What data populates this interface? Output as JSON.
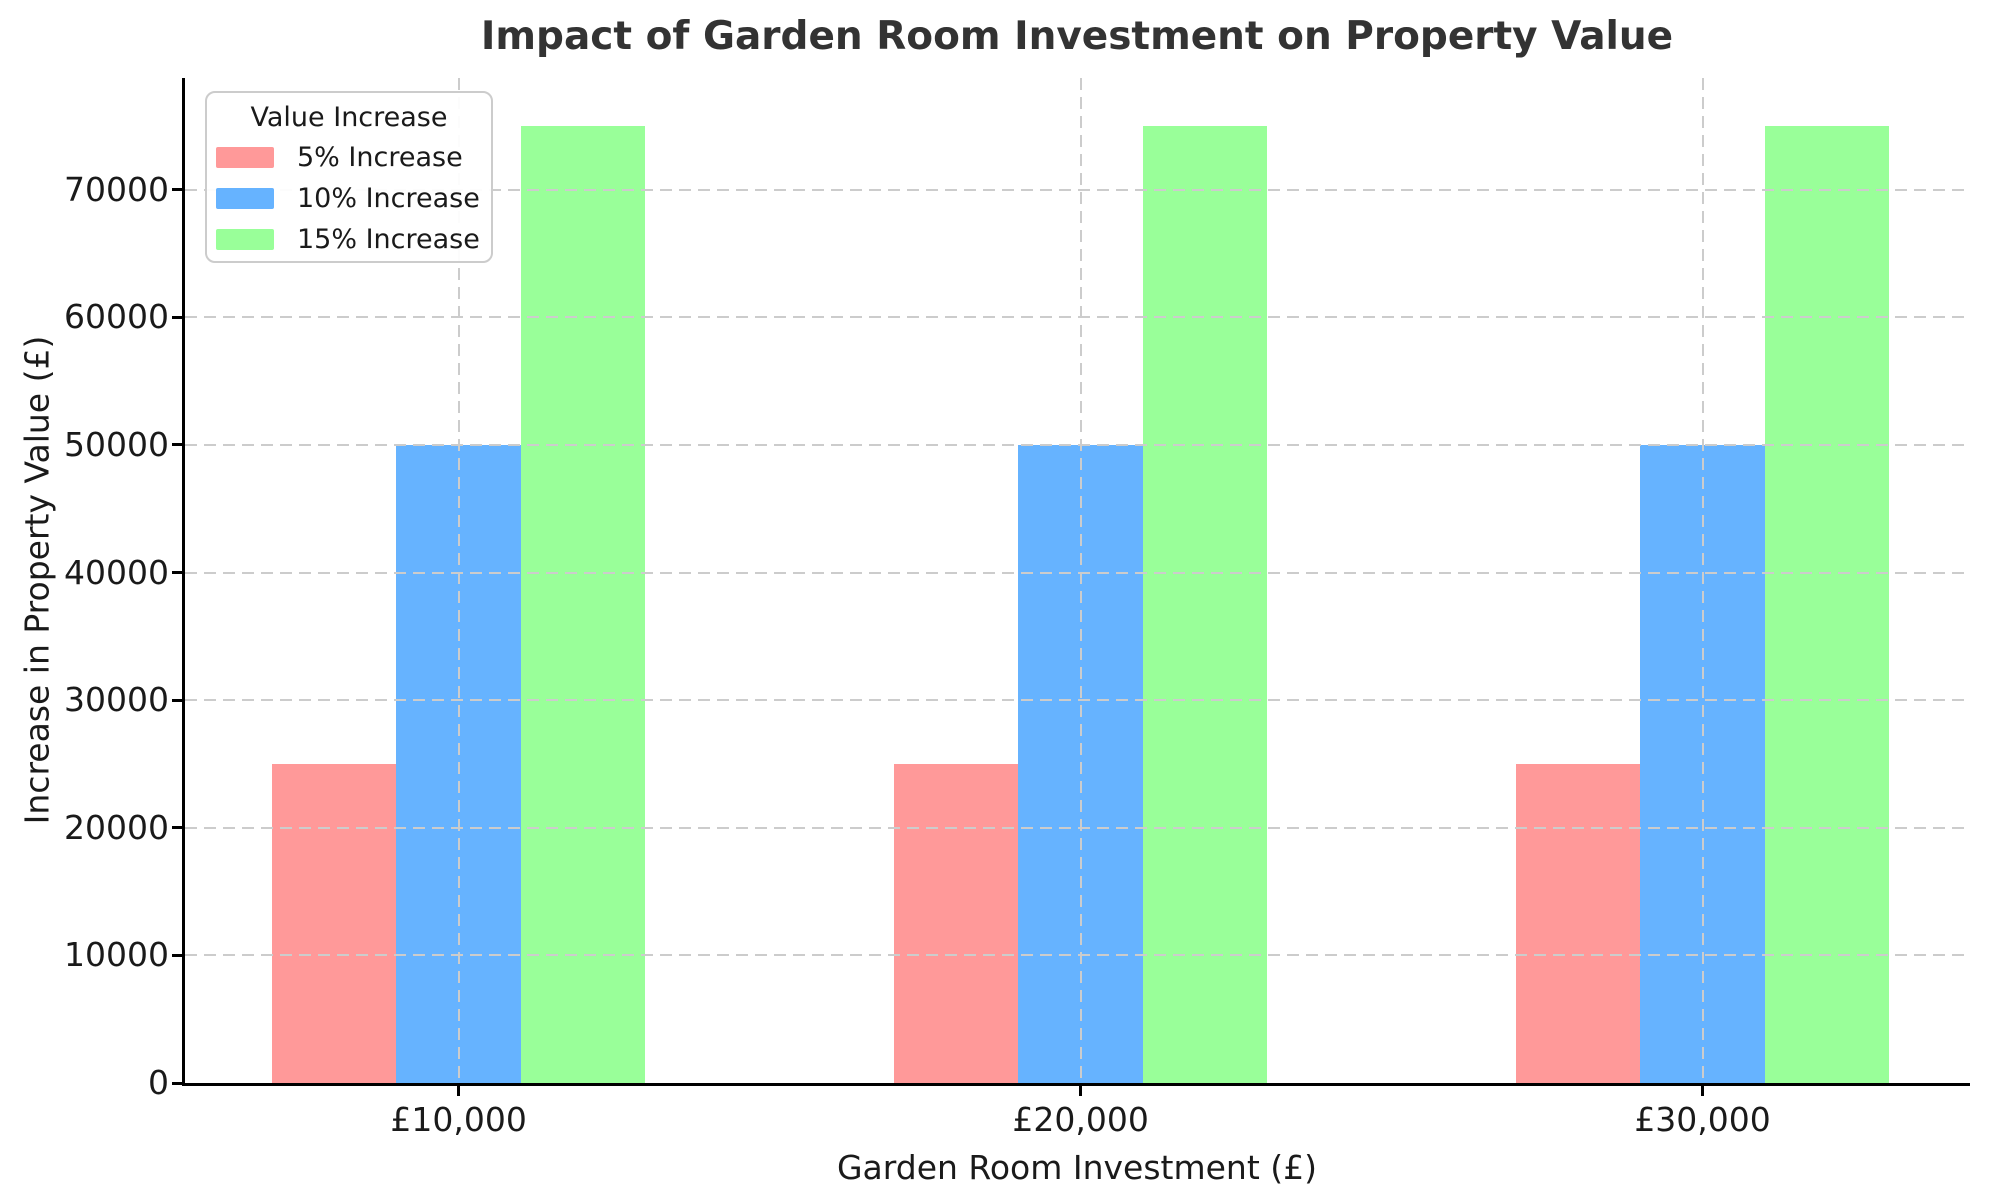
{
  "chart_data": {
    "type": "bar",
    "title": "Impact of Garden Room Investment on Property Value",
    "xlabel": "Garden Room Investment (£)",
    "ylabel": "Increase in Property Value (£)",
    "categories": [
      "£10,000",
      "£20,000",
      "£30,000"
    ],
    "series": [
      {
        "name": "5% Increase",
        "color": "#ff9999",
        "values": [
          25000,
          25000,
          25000
        ]
      },
      {
        "name": "10% Increase",
        "color": "#66b3ff",
        "values": [
          50000,
          50000,
          50000
        ]
      },
      {
        "name": "15% Increase",
        "color": "#99ff99",
        "values": [
          75000,
          75000,
          75000
        ]
      }
    ],
    "legend": {
      "title": "Value Increase",
      "position": "upper-left"
    },
    "y_ticks": [
      0,
      10000,
      20000,
      30000,
      40000,
      50000,
      60000,
      70000
    ],
    "ylim": [
      0,
      78750
    ],
    "grid": {
      "style": "dashed",
      "axes": "both",
      "above_bars": true,
      "color": "#cccccc"
    },
    "colors": {
      "background": "#ffffff",
      "axis": "#000000",
      "text": "#1a1a1a",
      "title_text": "#333333"
    }
  }
}
